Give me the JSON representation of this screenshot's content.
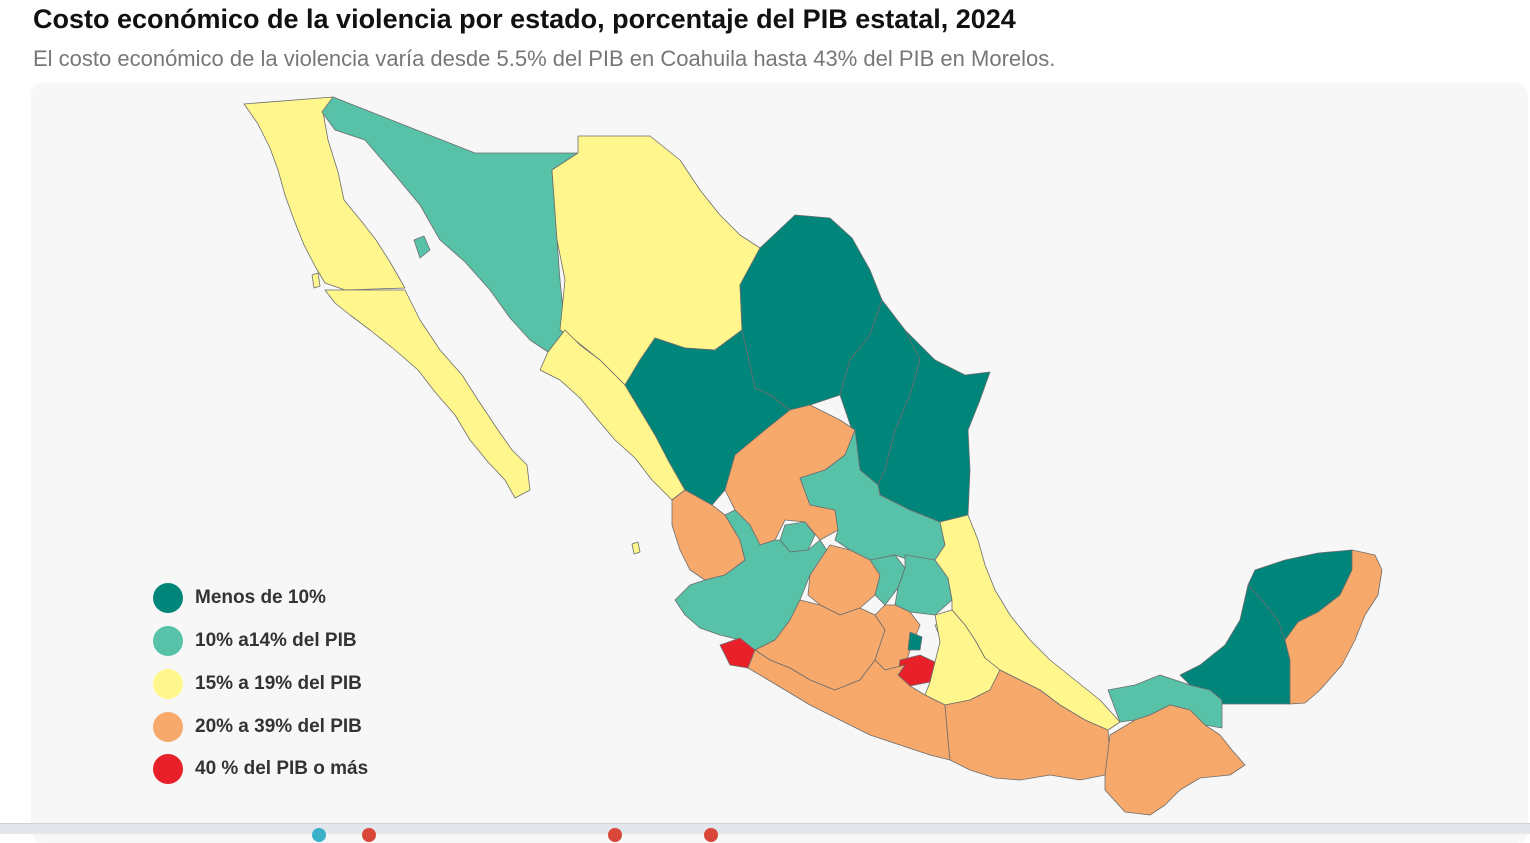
{
  "title": "Costo económico de la violencia por estado, porcentaje del PIB estatal, 2024",
  "subtitle": "El costo económico de la violencia varía desde 5.5% del PIB en Coahuila hasta 43% del PIB en Morelos.",
  "colors": {
    "menos_10": "#00857a",
    "de_10_14": "#58c2a8",
    "de_15_19": "#fff78d",
    "de_20_39": "#f7a96b",
    "mas_40": "#e8202a",
    "background": "#f7f7f7",
    "border": "#6d6d6d"
  },
  "legend": [
    {
      "label": "Menos de 10%",
      "color_key": "menos_10"
    },
    {
      "label": "10% a14% del PIB",
      "color_key": "de_10_14"
    },
    {
      "label": "15% a 19% del PIB",
      "color_key": "de_15_19"
    },
    {
      "label": "20% a 39% del PIB",
      "color_key": "de_20_39"
    },
    {
      "label": "40 % del PIB o más",
      "color_key": "mas_40"
    }
  ]
}
